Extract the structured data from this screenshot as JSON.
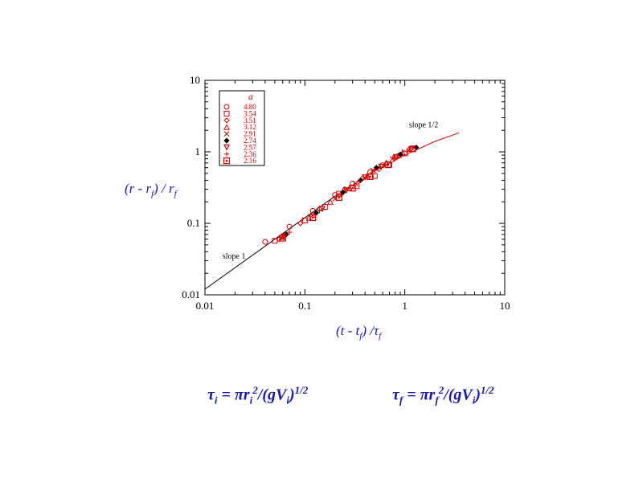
{
  "chart_data": {
    "type": "scatter",
    "x_scale": "log",
    "y_scale": "log",
    "xlim": [
      0.01,
      10
    ],
    "ylim": [
      0.01,
      10
    ],
    "x_ticks": [
      "0.01",
      "0.1",
      "1",
      "10"
    ],
    "y_ticks": [
      "0.01",
      "0.1",
      "1",
      "10"
    ],
    "xlabel": "(t - t_f) / τ_f",
    "ylabel": "(r - r_f) / r_f",
    "legend_title": "a",
    "legend_position": "top-left",
    "series": [
      {
        "name": "4.80",
        "marker": "circle-open",
        "points": [
          [
            0.04,
            0.055
          ],
          [
            0.07,
            0.09
          ],
          [
            0.12,
            0.15
          ],
          [
            0.2,
            0.25
          ],
          [
            0.3,
            0.36
          ],
          [
            0.45,
            0.52
          ],
          [
            0.6,
            0.65
          ],
          [
            0.8,
            0.85
          ]
        ]
      },
      {
        "name": "3.54",
        "marker": "square-open",
        "points": [
          [
            0.05,
            0.057
          ],
          [
            0.1,
            0.11
          ],
          [
            0.16,
            0.17
          ],
          [
            0.22,
            0.26
          ],
          [
            0.33,
            0.33
          ],
          [
            0.5,
            0.46
          ],
          [
            0.7,
            0.66
          ],
          [
            1.0,
            0.95
          ]
        ]
      },
      {
        "name": "3.51",
        "marker": "diamond-open",
        "points": [
          [
            0.055,
            0.06
          ],
          [
            0.09,
            0.1
          ],
          [
            0.14,
            0.16
          ],
          [
            0.25,
            0.3
          ],
          [
            0.38,
            0.43
          ],
          [
            0.55,
            0.57
          ],
          [
            0.85,
            0.88
          ]
        ]
      },
      {
        "name": "3.12",
        "marker": "triangle-open",
        "points": [
          [
            0.06,
            0.065
          ],
          [
            0.11,
            0.12
          ],
          [
            0.18,
            0.2
          ],
          [
            0.28,
            0.31
          ],
          [
            0.42,
            0.46
          ],
          [
            0.65,
            0.7
          ],
          [
            0.95,
            0.98
          ]
        ]
      },
      {
        "name": "2.91",
        "marker": "x",
        "points": [
          [
            0.058,
            0.063
          ],
          [
            0.12,
            0.13
          ],
          [
            0.2,
            0.22
          ],
          [
            0.32,
            0.36
          ],
          [
            0.48,
            0.55
          ],
          [
            0.75,
            0.8
          ],
          [
            1.1,
            1.05
          ]
        ]
      },
      {
        "name": "2.74",
        "marker": "diamond-filled",
        "points": [
          [
            0.065,
            0.07
          ],
          [
            0.13,
            0.14
          ],
          [
            0.24,
            0.27
          ],
          [
            0.36,
            0.4
          ],
          [
            0.52,
            0.6
          ],
          [
            0.9,
            0.92
          ],
          [
            1.3,
            1.15
          ]
        ]
      },
      {
        "name": "2.57",
        "marker": "triangle-down-open",
        "points": [
          [
            0.062,
            0.066
          ],
          [
            0.15,
            0.16
          ],
          [
            0.26,
            0.29
          ],
          [
            0.4,
            0.44
          ],
          [
            0.58,
            0.62
          ],
          [
            0.82,
            0.84
          ],
          [
            1.15,
            1.08
          ]
        ]
      },
      {
        "name": "2.36",
        "marker": "plus",
        "points": [
          [
            0.07,
            0.075
          ],
          [
            0.14,
            0.15
          ],
          [
            0.23,
            0.25
          ],
          [
            0.35,
            0.39
          ],
          [
            0.5,
            0.56
          ],
          [
            0.78,
            0.82
          ],
          [
            1.05,
            1.02
          ]
        ]
      },
      {
        "name": "2.16",
        "marker": "square-dot",
        "points": [
          [
            0.06,
            0.062
          ],
          [
            0.12,
            0.12
          ],
          [
            0.22,
            0.23
          ],
          [
            0.3,
            0.31
          ],
          [
            0.45,
            0.45
          ],
          [
            0.68,
            0.66
          ],
          [
            1.2,
            1.1
          ]
        ]
      }
    ],
    "lines": [
      {
        "name": "slope 1",
        "color": "#000000",
        "points": [
          [
            0.01,
            0.012
          ],
          [
            0.2,
            0.24
          ]
        ]
      },
      {
        "name": "slope 1/2",
        "color": "#d40000",
        "points": [
          [
            0.2,
            0.24
          ],
          [
            0.5,
            0.54
          ],
          [
            1.0,
            0.9
          ],
          [
            2.0,
            1.4
          ],
          [
            3.5,
            1.85
          ]
        ]
      }
    ],
    "annotations": [
      {
        "text": "slope 1",
        "x": 0.015,
        "y": 0.032
      },
      {
        "text": "slope 1/2",
        "x": 1.1,
        "y": 2.2
      }
    ],
    "marker_color": "#d40000"
  },
  "axes": {
    "xlabel_parts": {
      "a": "(t - t",
      "b": "f",
      "c": ") /τ",
      "d": "f"
    },
    "ylabel_parts": {
      "a": "(r - r",
      "b": "f",
      "c": ") / r",
      "d": "f"
    }
  },
  "formulas": {
    "tau_i": {
      "lhs": "τ",
      "lhs_sub": "i",
      "eq": " = πr",
      "r_sub": "i",
      "r_sup": "2",
      "mid": "/(gV",
      "v_sub": "i",
      "close": ")",
      "exp": "1/2"
    },
    "tau_f": {
      "lhs": "τ",
      "lhs_sub": "f",
      "eq": " = πr",
      "r_sub": "f",
      "r_sup": "2",
      "mid": "/(gV",
      "v_sub": "i",
      "close": ")",
      "exp": "1/2"
    }
  },
  "colors": {
    "accent_blue": "#1a1aaa",
    "marker_red": "#d40000"
  }
}
